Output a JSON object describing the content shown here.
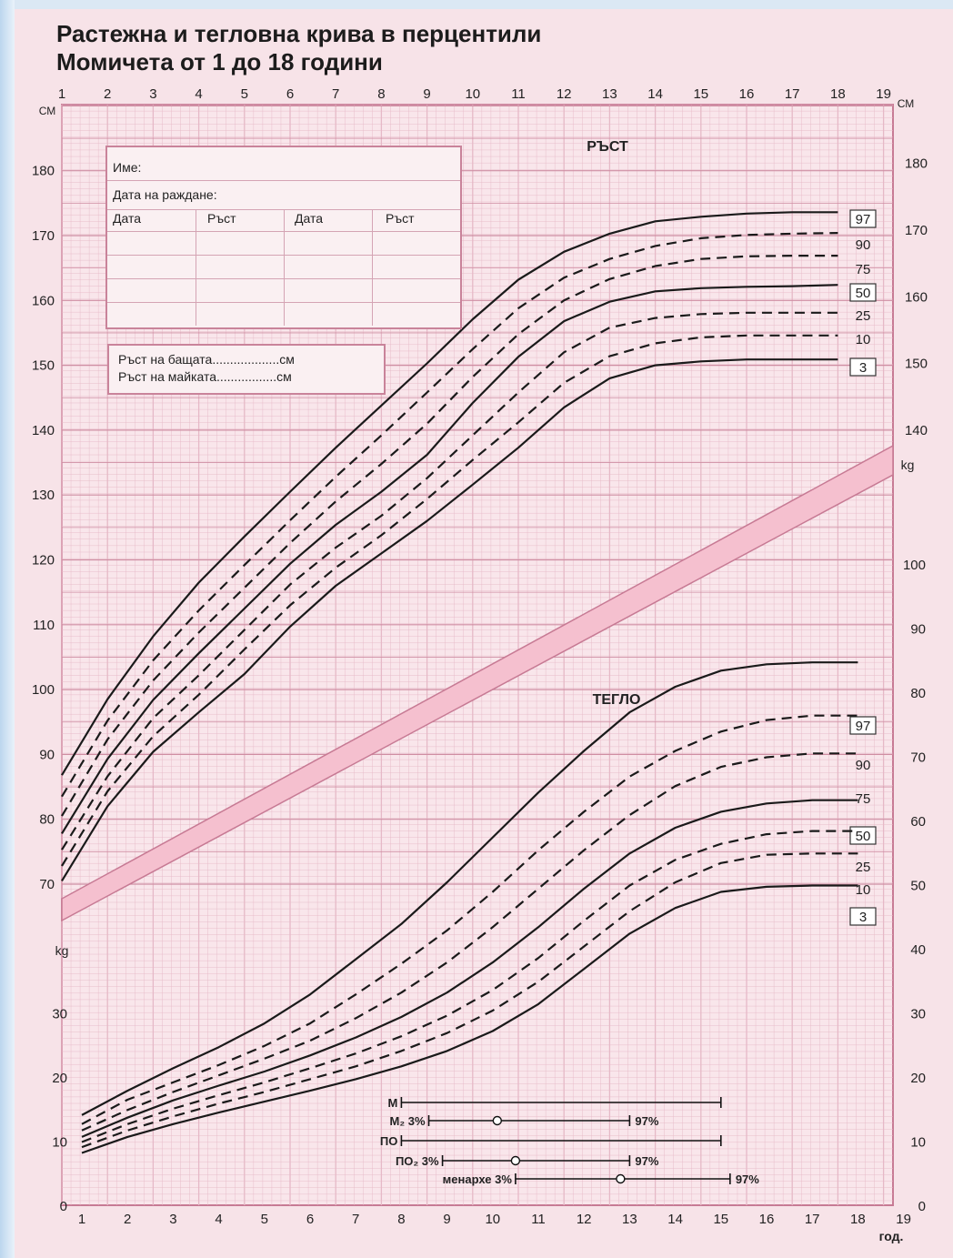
{
  "title": {
    "line1": "Растежна и тегловна крива в перцентили",
    "line2": "Момичета от 1 до 18 години"
  },
  "info_box": {
    "name_label": "Име:",
    "dob_label": "Дата на раждане:",
    "col_headers": [
      "Дата",
      "Ръст",
      "Дата",
      "Ръст"
    ]
  },
  "parents_box": {
    "father": "Ръст на бащата...................см",
    "mother": "Ръст на майката.................см"
  },
  "colors": {
    "background": "#f7e3e8",
    "grid_minor": "#e6b9c7",
    "grid_major": "#cf8ea3",
    "curve": "#1a1a1a",
    "band": "#f5c0cf"
  },
  "chart_data": [
    {
      "type": "line",
      "title": "РЪСТ",
      "ylabel": "см",
      "x_ticks_top": [
        "1",
        "2",
        "3",
        "4",
        "5",
        "6",
        "7",
        "8",
        "9",
        "10",
        "11",
        "12",
        "13",
        "14",
        "15",
        "16",
        "17",
        "18",
        "19"
      ],
      "y_ticks_left": [
        "70",
        "80",
        "90",
        "100",
        "110",
        "120",
        "130",
        "140",
        "150",
        "160",
        "170",
        "180"
      ],
      "y_ticks_right": [
        "140",
        "150",
        "160",
        "170",
        "180"
      ],
      "ylim": [
        67,
        195
      ],
      "xlim": [
        1,
        19
      ],
      "x": [
        1,
        2,
        3,
        4,
        5,
        6,
        7,
        8,
        9,
        10,
        11,
        12,
        13,
        14,
        15,
        16,
        17,
        18
      ],
      "series": [
        {
          "name": "97",
          "boxed": true,
          "dashed": false,
          "values": [
            86.8,
            98.5,
            108.2,
            116.5,
            123.6,
            130.5,
            137.3,
            143.8,
            150.3,
            157.1,
            163.2,
            167.5,
            170.3,
            172.2,
            172.9,
            173.4,
            173.6,
            173.6
          ]
        },
        {
          "name": "90",
          "boxed": false,
          "dashed": true,
          "values": [
            83.5,
            95.2,
            104.5,
            112.2,
            119.2,
            126.1,
            132.8,
            139.2,
            145.8,
            152.5,
            158.8,
            163.5,
            166.4,
            168.4,
            169.6,
            170.1,
            170.3,
            170.4
          ]
        },
        {
          "name": "75",
          "boxed": false,
          "dashed": true,
          "values": [
            80.5,
            92.3,
            101.4,
            108.8,
            115.7,
            122.6,
            129.0,
            134.8,
            141.0,
            148.2,
            154.8,
            160.0,
            163.3,
            165.3,
            166.4,
            166.8,
            166.9,
            166.9
          ]
        },
        {
          "name": "50",
          "boxed": true,
          "dashed": false,
          "values": [
            77.8,
            89.3,
            98.4,
            105.6,
            112.5,
            119.4,
            125.4,
            130.5,
            136.2,
            144.2,
            151.3,
            156.8,
            159.8,
            161.4,
            161.9,
            162.1,
            162.2,
            162.4
          ]
        },
        {
          "name": "25",
          "boxed": false,
          "dashed": true,
          "values": [
            75.3,
            86.6,
            95.6,
            102.2,
            109.2,
            116.2,
            121.9,
            126.8,
            132.6,
            139.2,
            145.8,
            152.0,
            155.8,
            157.3,
            157.9,
            158.1,
            158.1,
            158.1
          ]
        },
        {
          "name": "10",
          "boxed": false,
          "dashed": true,
          "values": [
            72.8,
            84.3,
            92.8,
            99.2,
            106.2,
            113.0,
            118.8,
            123.8,
            129.4,
            135.4,
            141.2,
            147.3,
            151.4,
            153.4,
            154.3,
            154.6,
            154.6,
            154.6
          ]
        },
        {
          "name": "3",
          "boxed": true,
          "dashed": false,
          "values": [
            70.5,
            82.0,
            90.4,
            96.5,
            102.4,
            109.7,
            116.0,
            121.0,
            126.0,
            131.6,
            137.3,
            143.5,
            148.0,
            150.0,
            150.6,
            150.9,
            150.9,
            150.9
          ]
        }
      ]
    },
    {
      "type": "line",
      "title": "ТЕГЛО",
      "ylabel": "kg",
      "xlabel": "год.",
      "x_ticks_bottom": [
        "1",
        "2",
        "3",
        "4",
        "5",
        "6",
        "7",
        "8",
        "9",
        "10",
        "11",
        "12",
        "13",
        "14",
        "15",
        "16",
        "17",
        "18",
        "19"
      ],
      "y_ticks_left": [
        "0",
        "10",
        "20",
        "30"
      ],
      "y_ticks_right": [
        "0",
        "10",
        "20",
        "30",
        "40",
        "50",
        "60",
        "70",
        "80",
        "90",
        "100"
      ],
      "ylim": [
        0,
        113
      ],
      "xlim": [
        1,
        19
      ],
      "x": [
        1,
        2,
        3,
        4,
        5,
        6,
        7,
        8,
        9,
        10,
        11,
        12,
        13,
        14,
        15,
        16,
        17,
        18
      ],
      "series": [
        {
          "name": "97",
          "boxed": true,
          "dashed": false,
          "values": [
            14.2,
            18.0,
            21.5,
            24.8,
            28.5,
            33.0,
            38.5,
            44.0,
            50.5,
            57.5,
            64.5,
            71.0,
            77.0,
            81.0,
            83.5,
            84.5,
            84.8,
            84.8
          ]
        },
        {
          "name": "90",
          "boxed": false,
          "dashed": true,
          "values": [
            12.8,
            16.6,
            19.3,
            22.0,
            25.0,
            28.5,
            33.0,
            37.8,
            43.0,
            49.0,
            55.5,
            61.5,
            67.0,
            71.0,
            74.0,
            75.8,
            76.5,
            76.5
          ]
        },
        {
          "name": "75",
          "boxed": false,
          "dashed": true,
          "values": [
            11.8,
            15.0,
            17.8,
            20.4,
            23.0,
            25.8,
            29.3,
            33.3,
            38.0,
            43.5,
            49.5,
            55.5,
            61.0,
            65.5,
            68.5,
            70.0,
            70.6,
            70.6
          ]
        },
        {
          "name": "50",
          "boxed": true,
          "dashed": false,
          "values": [
            10.8,
            13.8,
            16.5,
            18.8,
            21.0,
            23.5,
            26.3,
            29.5,
            33.3,
            38.0,
            43.5,
            49.5,
            55.0,
            59.0,
            61.5,
            62.8,
            63.3,
            63.3
          ]
        },
        {
          "name": "25",
          "boxed": false,
          "dashed": true,
          "values": [
            10.0,
            12.8,
            15.2,
            17.3,
            19.3,
            21.5,
            23.8,
            26.5,
            29.7,
            33.7,
            38.7,
            44.5,
            50.0,
            54.0,
            56.5,
            58.0,
            58.5,
            58.5
          ]
        },
        {
          "name": "10",
          "boxed": false,
          "dashed": true,
          "values": [
            9.2,
            11.8,
            14.0,
            16.0,
            17.8,
            19.8,
            21.8,
            24.2,
            27.0,
            30.5,
            35.0,
            40.5,
            46.0,
            50.5,
            53.5,
            54.8,
            55.0,
            55.0
          ]
        },
        {
          "name": "3",
          "boxed": true,
          "dashed": false,
          "values": [
            8.3,
            10.8,
            12.8,
            14.6,
            16.3,
            18.0,
            19.8,
            21.8,
            24.2,
            27.3,
            31.5,
            37.0,
            42.5,
            46.5,
            49.0,
            49.8,
            50.0,
            50.0
          ]
        }
      ]
    }
  ],
  "maturation_bars": [
    {
      "label": "М",
      "from": 8.0,
      "to": 15.0,
      "mark": null,
      "pct_left": "",
      "pct_right": ""
    },
    {
      "label": "М₂ 3%",
      "from": 8.6,
      "to": 13.0,
      "mark": 10.1,
      "pct_left": "3%",
      "pct_right": "97%"
    },
    {
      "label": "ПО",
      "from": 8.0,
      "to": 15.0,
      "mark": null,
      "pct_left": "",
      "pct_right": ""
    },
    {
      "label": "ПО₂ 3%",
      "from": 8.9,
      "to": 13.0,
      "mark": 10.5,
      "pct_left": "3%",
      "pct_right": "97%"
    },
    {
      "label": "менархе 3%",
      "from": 10.5,
      "to": 15.2,
      "mark": 12.8,
      "pct_left": "3%",
      "pct_right": "97%"
    }
  ],
  "axis_text": {
    "unit_top_left": "СМ",
    "unit_top_right": "СМ",
    "unit_kg_right": "kg",
    "unit_kg_left": "kg",
    "years_label": "год."
  }
}
